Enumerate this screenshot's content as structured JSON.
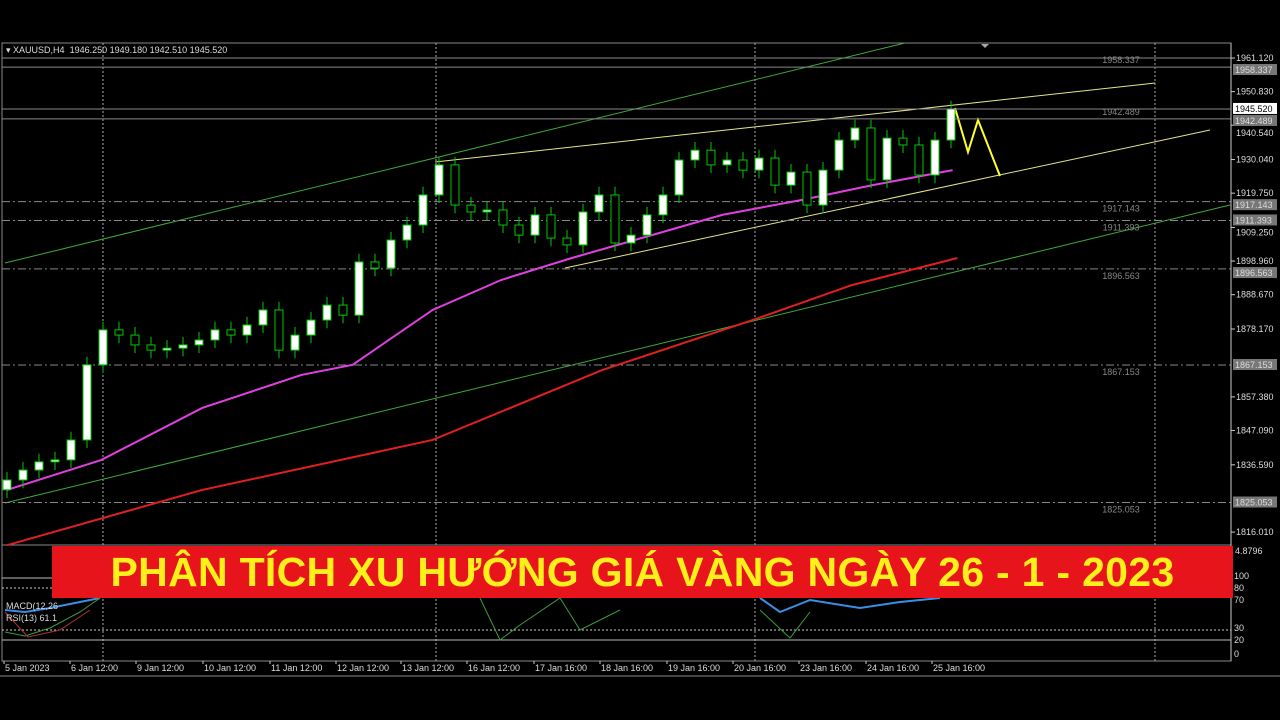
{
  "header": {
    "symbol": "XAUUSD,H4",
    "ohlc": "1946.250 1949.180 1942.510 1945.520"
  },
  "banner": {
    "title": "PHÂN TÍCH XU HƯỚNG GIÁ VÀNG NGÀY 26 - 1 - 2023"
  },
  "indicators": {
    "macd_label": "MACD(12,26",
    "rsi_label": "RSI(13) 61.1",
    "macd_value": "4.8796",
    "rsi_levels": [
      "100",
      "80",
      "70",
      "30",
      "20",
      "0"
    ]
  },
  "colors": {
    "background": "#000000",
    "bull": "#ffffff",
    "bear": "#000000",
    "candle_outline": "#00c800",
    "ma_fast": "#e040e0",
    "ma_slow": "#e02020",
    "channel": "#3caa3c",
    "trendline": "#e6e68c",
    "banner_bg": "#e8141c",
    "banner_text": "#ffef1a"
  },
  "chart_data": {
    "type": "candlestick",
    "symbol": "XAUUSD",
    "timeframe": "H4",
    "ylim": [
      1812,
      1964
    ],
    "price_ticks": [
      "1961.120",
      "1950.830",
      "1940.540",
      "1930.040",
      "1919.750",
      "1909.250",
      "1898.960",
      "1888.670",
      "1878.170",
      "1857.380",
      "1847.090",
      "1836.590",
      "1816.010"
    ],
    "time_labels": [
      "5 Jan 2023",
      "6 Jan 12:00",
      "9 Jan 12:00",
      "10 Jan 12:00",
      "11 Jan 12:00",
      "12 Jan 12:00",
      "13 Jan 12:00",
      "16 Jan 12:00",
      "17 Jan 16:00",
      "18 Jan 16:00",
      "19 Jan 16:00",
      "20 Jan 16:00",
      "23 Jan 16:00",
      "24 Jan 16:00",
      "25 Jan 16:00"
    ],
    "closes": [
      1831.95,
      1835.0,
      1837.5,
      1838.1,
      1844.2,
      1867.2,
      1877.9,
      1876.3,
      1873.3,
      1871.7,
      1872.3,
      1873.3,
      1874.8,
      1877.9,
      1876.3,
      1879.4,
      1884.0,
      1871.7,
      1876.3,
      1880.9,
      1885.5,
      1882.4,
      1898.7,
      1896.8,
      1905.4,
      1910.0,
      1919.2,
      1928.4,
      1916.1,
      1914.0,
      1914.6,
      1910.0,
      1906.9,
      1913.1,
      1906.0,
      1903.9,
      1914.0,
      1919.2,
      1904.5,
      1906.9,
      1913.1,
      1919.2,
      1929.9,
      1932.9,
      1928.4,
      1929.9,
      1926.8,
      1930.5,
      1922.2,
      1926.2,
      1916.1,
      1926.8,
      1936.0,
      1939.7,
      1923.8,
      1936.6,
      1934.5,
      1925.3,
      1936.0,
      1945.52
    ],
    "ma_fast": [
      [
        0,
        1828.9
      ],
      [
        5.9,
        1838.1
      ],
      [
        12.2,
        1854.0
      ],
      [
        18.4,
        1864.1
      ],
      [
        21.6,
        1867.2
      ],
      [
        26.6,
        1884.0
      ],
      [
        30.9,
        1893.2
      ],
      [
        35.3,
        1899.9
      ],
      [
        40.3,
        1906.9
      ],
      [
        44.7,
        1913.1
      ],
      [
        49.7,
        1917.7
      ],
      [
        54.1,
        1922.2
      ],
      [
        59.1,
        1926.8
      ]
    ],
    "ma_slow": [
      [
        0,
        1812.0
      ],
      [
        12.2,
        1828.9
      ],
      [
        26.6,
        1844.2
      ],
      [
        37.2,
        1865.6
      ],
      [
        46.6,
        1880.9
      ],
      [
        52.8,
        1891.6
      ],
      [
        59.4,
        1899.9
      ]
    ],
    "levels": [
      {
        "price": "1958.337",
        "style": "solid"
      },
      {
        "price": "1942.489",
        "style": "solid"
      },
      {
        "price": "1917.143",
        "style": "dashed"
      },
      {
        "price": "1911.393",
        "style": "dashed"
      },
      {
        "price": "1896.563",
        "style": "dashed"
      },
      {
        "price": "1867.153",
        "style": "dashed"
      },
      {
        "price": "1825.053",
        "style": "dashed"
      }
    ],
    "current_price": "1945.520"
  }
}
